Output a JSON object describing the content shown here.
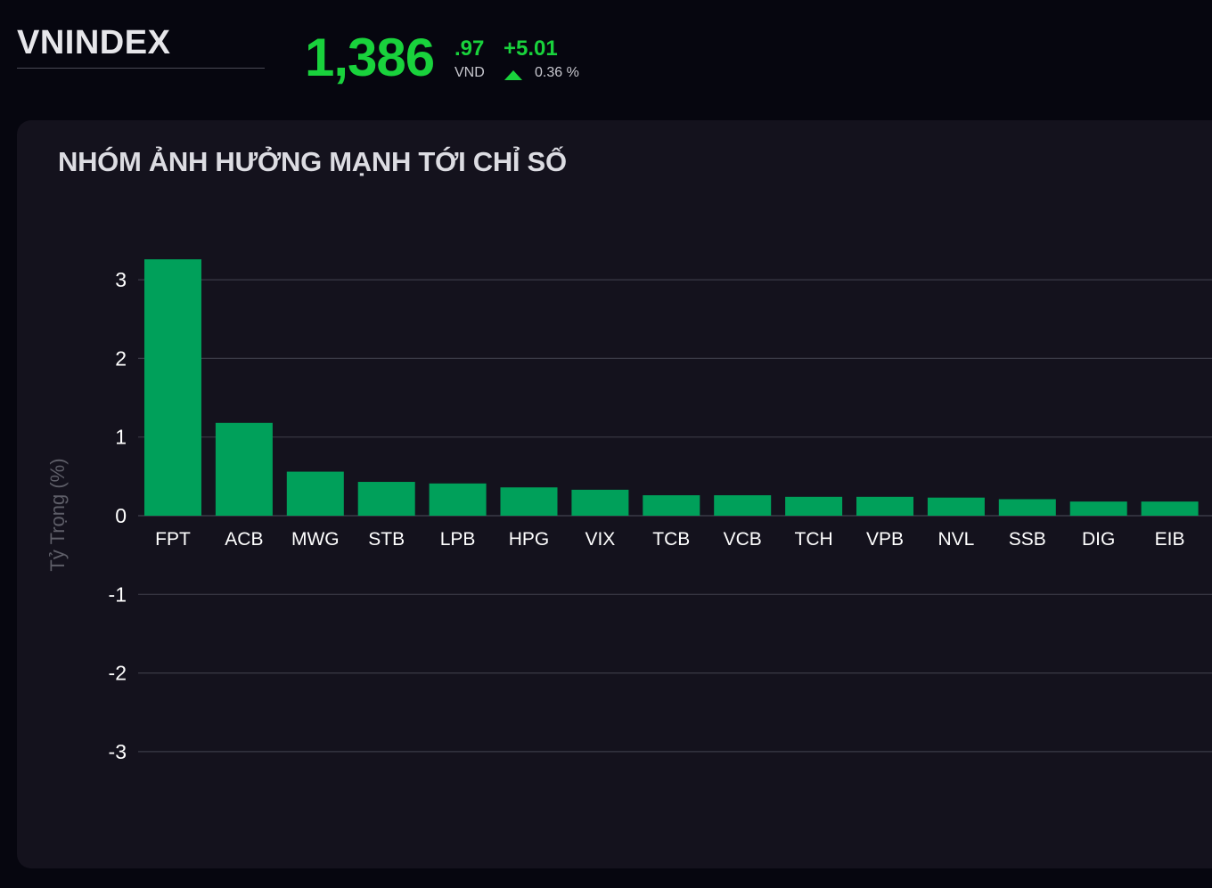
{
  "header": {
    "ticker": "VNINDEX",
    "price_integer": "1,386",
    "price_decimal": ".97",
    "currency": "VND",
    "change": "+5.01",
    "change_percent": "0.36 %",
    "trend": "up"
  },
  "panel": {
    "title": "NHÓM ẢNH HƯỞNG MẠNH TỚI CHỈ SỐ"
  },
  "colors": {
    "up": "#19d23c",
    "bar": "#00a05a",
    "grid": "#3a3a46",
    "panel_bg": "#14121d",
    "page_bg": "#06060f"
  },
  "chart_data": {
    "type": "bar",
    "title": "NHÓM ẢNH HƯỞNG MẠNH TỚI CHỈ SỐ",
    "xlabel": "",
    "ylabel": "Tỷ Trọng (%)",
    "categories": [
      "FPT",
      "ACB",
      "MWG",
      "STB",
      "LPB",
      "HPG",
      "VIX",
      "TCB",
      "VCB",
      "TCH",
      "VPB",
      "NVL",
      "SSB",
      "DIG",
      "EIB"
    ],
    "values": [
      3.26,
      1.18,
      0.56,
      0.43,
      0.41,
      0.36,
      0.33,
      0.26,
      0.26,
      0.24,
      0.24,
      0.23,
      0.21,
      0.18,
      0.18
    ],
    "ylim": [
      -3.3,
      3.3
    ],
    "yticks": [
      3,
      2,
      1,
      0,
      -1,
      -2,
      -3
    ],
    "grid": true,
    "legend": "none"
  }
}
